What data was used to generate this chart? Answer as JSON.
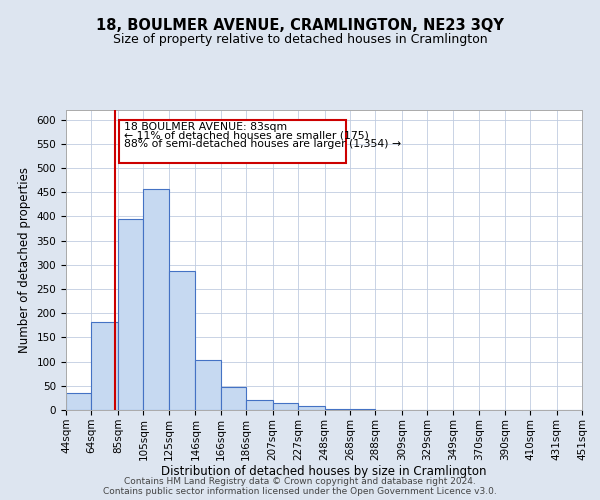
{
  "title": "18, BOULMER AVENUE, CRAMLINGTON, NE23 3QY",
  "subtitle": "Size of property relative to detached houses in Cramlington",
  "xlabel": "Distribution of detached houses by size in Cramlington",
  "ylabel": "Number of detached properties",
  "bin_edges": [
    44,
    64,
    85,
    105,
    125,
    146,
    166,
    186,
    207,
    227,
    248,
    268,
    288,
    309,
    329,
    349,
    370,
    390,
    410,
    431,
    451
  ],
  "bar_heights": [
    35,
    182,
    394,
    456,
    287,
    104,
    48,
    20,
    15,
    8,
    3,
    2,
    1,
    1,
    0,
    0,
    1,
    0,
    0,
    1
  ],
  "bar_color": "#c6d9f1",
  "bar_edge_color": "#4472c4",
  "property_line_x": 83,
  "property_line_color": "#cc0000",
  "annotation_line1": "18 BOULMER AVENUE: 83sqm",
  "annotation_line2": "← 11% of detached houses are smaller (175)",
  "annotation_line3": "88% of semi-detached houses are larger (1,354) →",
  "ylim": [
    0,
    620
  ],
  "yticks": [
    0,
    50,
    100,
    150,
    200,
    250,
    300,
    350,
    400,
    450,
    500,
    550,
    600
  ],
  "background_color": "#dde5f0",
  "plot_background_color": "#ffffff",
  "grid_color": "#c0cce0",
  "footer_line1": "Contains HM Land Registry data © Crown copyright and database right 2024.",
  "footer_line2": "Contains public sector information licensed under the Open Government Licence v3.0.",
  "title_fontsize": 10.5,
  "subtitle_fontsize": 9,
  "axis_label_fontsize": 8.5,
  "tick_fontsize": 7.5,
  "footer_fontsize": 6.5
}
